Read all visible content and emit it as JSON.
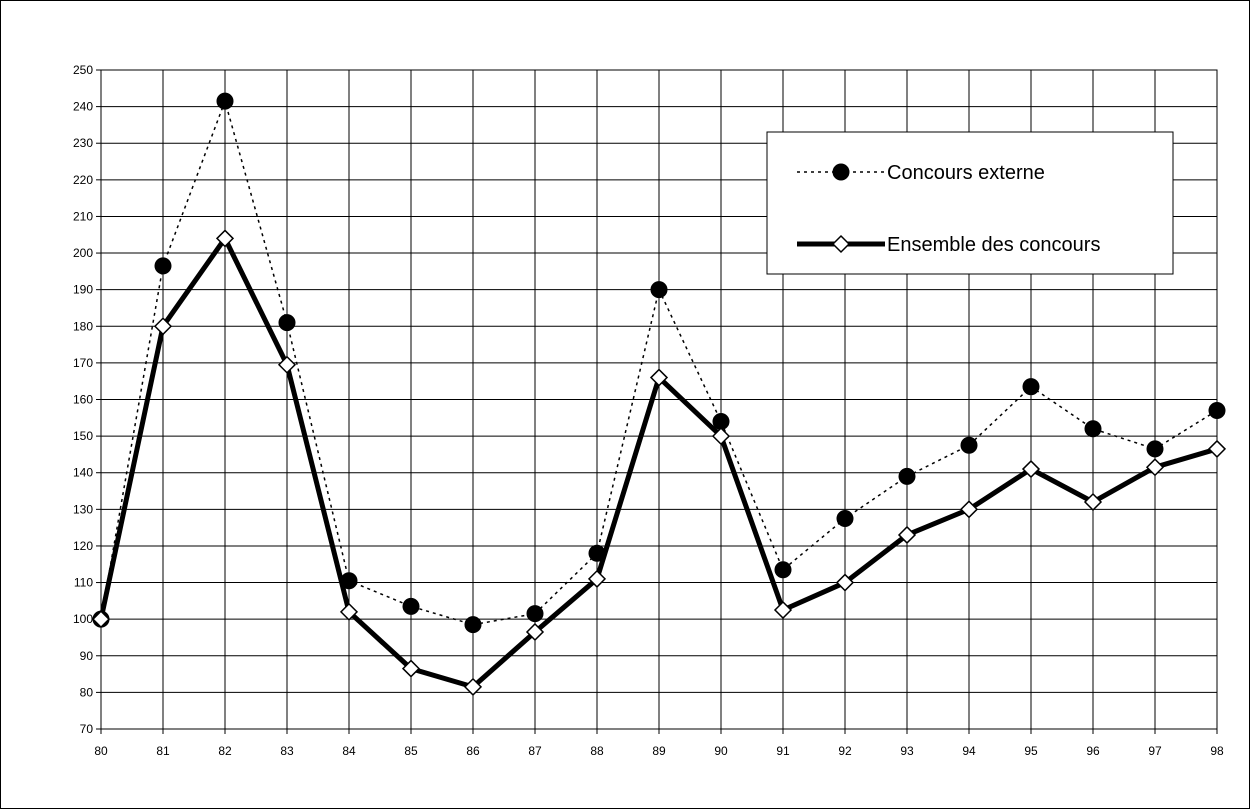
{
  "chart_data": {
    "type": "line",
    "title": "",
    "xlabel": "",
    "ylabel": "",
    "x": [
      "80",
      "81",
      "82",
      "83",
      "84",
      "85",
      "86",
      "87",
      "88",
      "89",
      "90",
      "91",
      "92",
      "93",
      "94",
      "95",
      "96",
      "97",
      "98"
    ],
    "ylim": [
      70,
      250
    ],
    "ytick_step": 10,
    "grid": true,
    "legend_position": "top-right",
    "series": [
      {
        "name": "Concours externe",
        "line_style": "dotted",
        "marker": "filled-circle",
        "color": "#000000",
        "values": [
          100,
          196.5,
          241.5,
          181,
          110.5,
          103.5,
          98.5,
          101.5,
          118,
          190,
          154,
          113.5,
          127.5,
          139,
          147.5,
          163.5,
          152,
          146.5,
          157
        ]
      },
      {
        "name": "Ensemble des concours",
        "line_style": "solid-thick",
        "marker": "open-diamond",
        "color": "#000000",
        "values": [
          100,
          180,
          204,
          169.5,
          102,
          86.5,
          81.5,
          96.5,
          111,
          166,
          150,
          102.5,
          110,
          123,
          130,
          141,
          132,
          141.5,
          146.5
        ]
      }
    ]
  }
}
